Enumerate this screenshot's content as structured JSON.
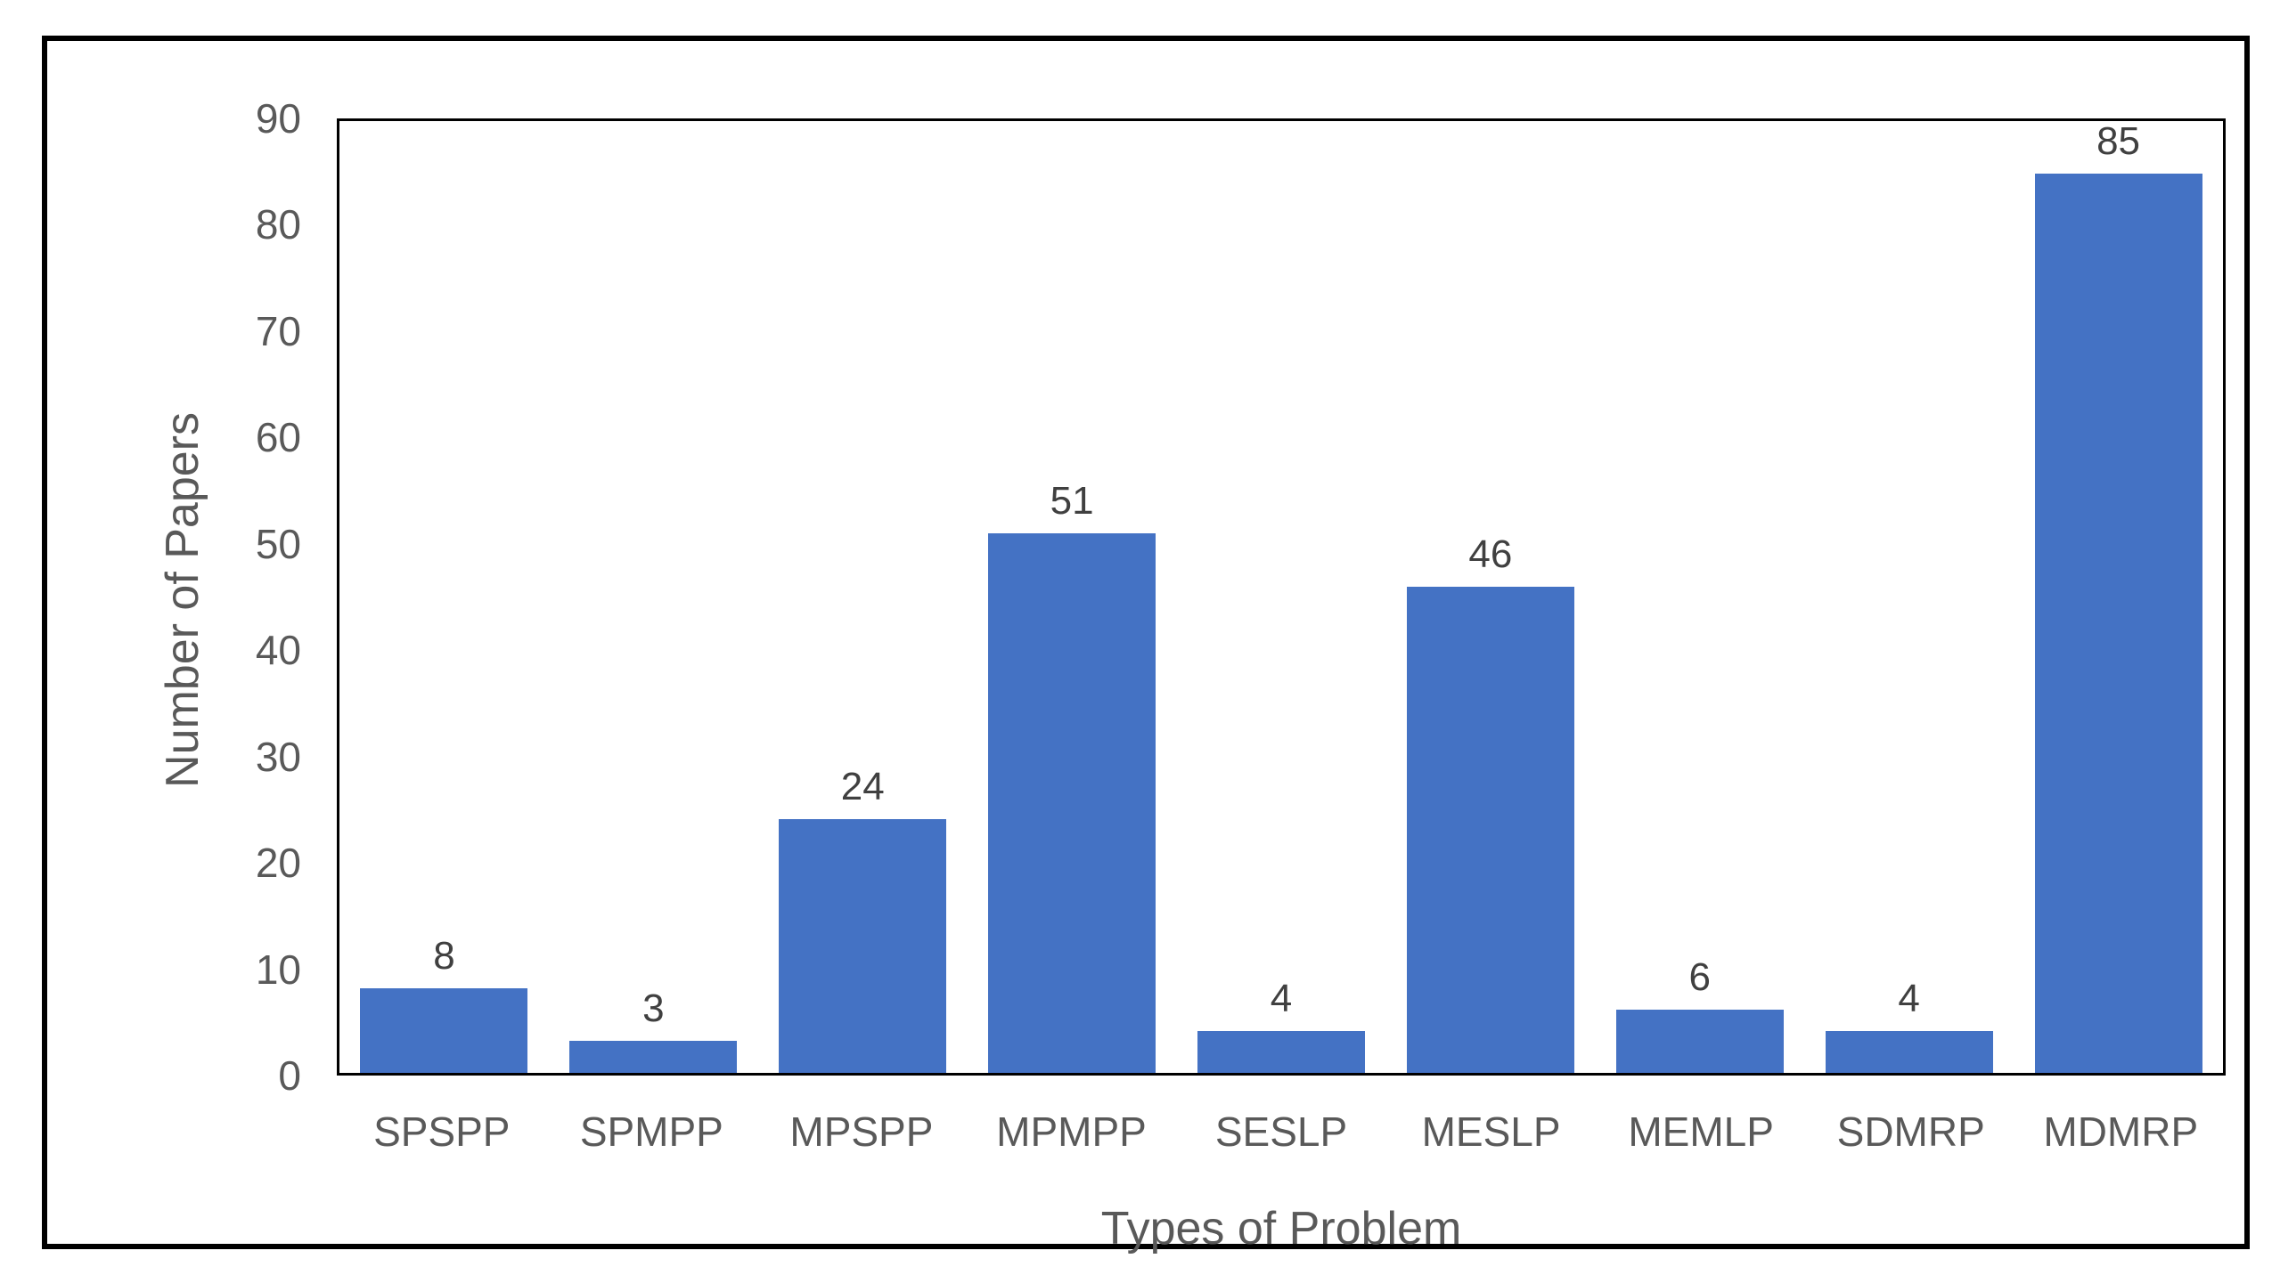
{
  "chart_data": {
    "type": "bar",
    "title": "",
    "categories": [
      "SPSPP",
      "SPMPP",
      "MPSPP",
      "MPMPP",
      "SESLP",
      "MESLP",
      "MEMLP",
      "SDMRP",
      "MDMRP"
    ],
    "values": [
      8,
      3,
      24,
      51,
      4,
      46,
      6,
      4,
      85
    ],
    "xlabel": "Types of Problem",
    "ylabel": "Number of Papers",
    "ylim": [
      0,
      90
    ],
    "yticks": [
      0,
      10,
      20,
      30,
      40,
      50,
      60,
      70,
      80,
      90
    ],
    "grid": false,
    "legend_position": "none",
    "data_labels_shown": true,
    "bar_color": "#4472C4",
    "data_label_color": "#404040",
    "axis_text_color": "#595959",
    "plot_border_color": "#000000",
    "outer_border_color": "#000000"
  }
}
